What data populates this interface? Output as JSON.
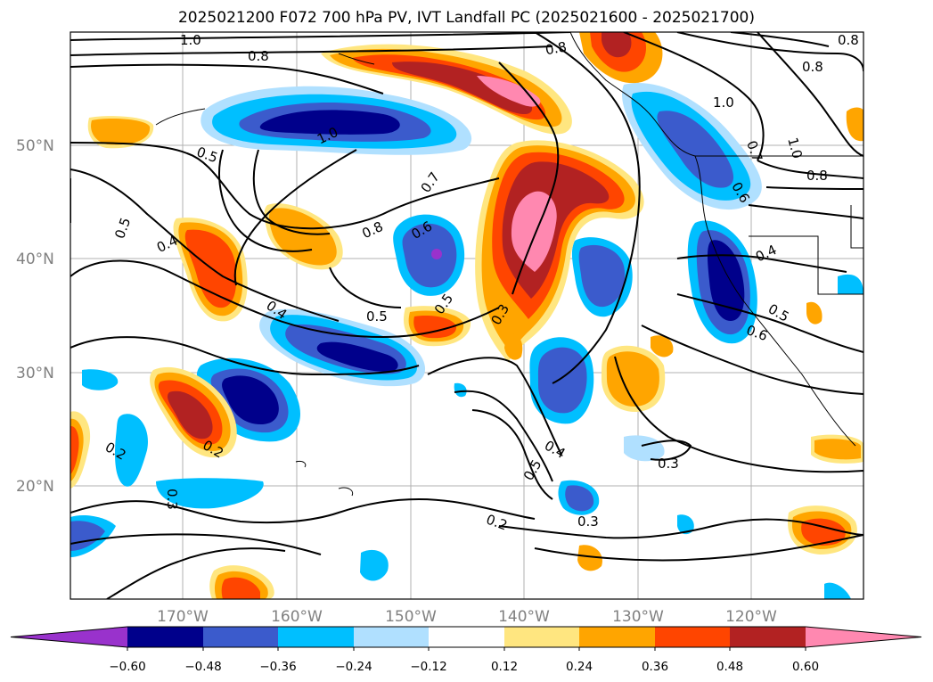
{
  "title": "2025021200 F072 700 hPa PV, IVT Landfall PC (2025021600 - 2025021700)",
  "latitude_labels": [
    "50°N",
    "40°N",
    "30°N",
    "20°N"
  ],
  "longitude_labels": [
    "170°W",
    "160°W",
    "150°W",
    "140°W",
    "130°W",
    "120°W"
  ],
  "colorbar": {
    "tick_labels": [
      "−0.60",
      "−0.48",
      "−0.36",
      "−0.24",
      "−0.12",
      "0.12",
      "0.24",
      "0.36",
      "0.48",
      "0.60"
    ],
    "colors": [
      "#9932cc",
      "#00008b",
      "#3b5bcc",
      "#00bfff",
      "#b0e0ff",
      "#ffffff",
      "#ffe680",
      "#ffa500",
      "#ff4500",
      "#b22222",
      "#ff88b0"
    ]
  },
  "contour_labels": [
    "1.0",
    "0.8",
    "1.0",
    "0.5",
    "0.5",
    "0.4",
    "0.8",
    "0.7",
    "0.6",
    "0.5",
    "0.5",
    "0.3",
    "0.4",
    "0.2",
    "0.3",
    "0.2",
    "0.2",
    "0.3",
    "0.4",
    "0.5",
    "0.3",
    "0.2",
    "0.8",
    "1.0",
    "0.7",
    "1.0",
    "0.8",
    "0.6",
    "0.4",
    "0.5",
    "0.6",
    "0.8",
    "0.8",
    "0.8"
  ]
}
